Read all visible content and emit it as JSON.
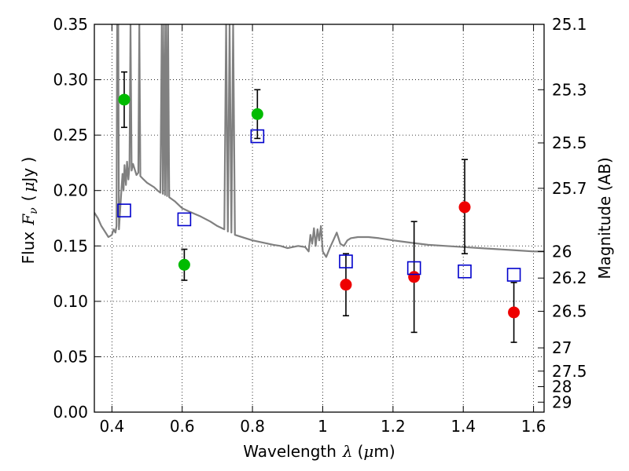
{
  "chart_data": {
    "type": "scatter",
    "xlabel": {
      "text": "Wavelength",
      "symbol": "λ",
      "unit_open": "(",
      "unit_mu": "μ",
      "unit_rest": "m)"
    },
    "ylabel": {
      "text": "Flux",
      "symbol_main": "F",
      "symbol_sub": "ν",
      "unit_open": "(",
      "unit_mu": "μ",
      "unit_rest": "Jy )"
    },
    "y2label": "Magnitude (AB)",
    "xlim": [
      0.35,
      1.63
    ],
    "ylim": [
      0.0,
      0.35
    ],
    "grid": true,
    "x_ticks": [
      {
        "value": 0.4,
        "label": "0.4"
      },
      {
        "value": 0.6,
        "label": "0.6"
      },
      {
        "value": 0.8,
        "label": "0.8"
      },
      {
        "value": 1.0,
        "label": "1"
      },
      {
        "value": 1.2,
        "label": "1.2"
      },
      {
        "value": 1.4,
        "label": "1.4"
      },
      {
        "value": 1.6,
        "label": "1.6"
      }
    ],
    "y_ticks": [
      {
        "value": 0.0,
        "label": "0.00"
      },
      {
        "value": 0.05,
        "label": "0.05"
      },
      {
        "value": 0.1,
        "label": "0.10"
      },
      {
        "value": 0.15,
        "label": "0.15"
      },
      {
        "value": 0.2,
        "label": "0.20"
      },
      {
        "value": 0.25,
        "label": "0.25"
      },
      {
        "value": 0.3,
        "label": "0.30"
      },
      {
        "value": 0.35,
        "label": "0.35"
      }
    ],
    "y2_ticks": [
      {
        "flux": 0.35,
        "label": "25.1"
      },
      {
        "flux": 0.291,
        "label": "25.3"
      },
      {
        "flux": 0.243,
        "label": "25.5"
      },
      {
        "flux": 0.202,
        "label": "25.7"
      },
      {
        "flux": 0.145,
        "label": "26"
      },
      {
        "flux": 0.121,
        "label": "26.2"
      },
      {
        "flux": 0.091,
        "label": "26.5"
      },
      {
        "flux": 0.058,
        "label": "27"
      },
      {
        "flux": 0.037,
        "label": "27.5"
      },
      {
        "flux": 0.023,
        "label": "28"
      },
      {
        "flux": 0.009,
        "label": "29"
      }
    ],
    "series": [
      {
        "marker": "circle",
        "color": "#00bb00",
        "points": [
          {
            "x": 0.435,
            "y": 0.282,
            "yerr_low": 0.257,
            "yerr_high": 0.307
          },
          {
            "x": 0.606,
            "y": 0.133,
            "yerr_low": 0.119,
            "yerr_high": 0.147
          },
          {
            "x": 0.814,
            "y": 0.269,
            "yerr_low": 0.247,
            "yerr_high": 0.291
          }
        ]
      },
      {
        "marker": "circle",
        "color": "#ee0000",
        "points": [
          {
            "x": 1.066,
            "y": 0.115,
            "yerr_low": 0.087,
            "yerr_high": 0.143
          },
          {
            "x": 1.26,
            "y": 0.122,
            "yerr_low": 0.072,
            "yerr_high": 0.172
          },
          {
            "x": 1.404,
            "y": 0.185,
            "yerr_low": 0.143,
            "yerr_high": 0.228
          },
          {
            "x": 1.544,
            "y": 0.09,
            "yerr_low": 0.063,
            "yerr_high": 0.117
          }
        ]
      },
      {
        "marker": "square-open",
        "color": "#0000cc",
        "points": [
          {
            "x": 0.435,
            "y": 0.182
          },
          {
            "x": 0.606,
            "y": 0.174
          },
          {
            "x": 0.814,
            "y": 0.249
          },
          {
            "x": 1.066,
            "y": 0.136
          },
          {
            "x": 1.26,
            "y": 0.13
          },
          {
            "x": 1.404,
            "y": 0.127
          },
          {
            "x": 1.544,
            "y": 0.124
          }
        ]
      },
      {
        "marker": "line",
        "color": "#808080",
        "points": [
          [
            0.35,
            0.18
          ],
          [
            0.36,
            0.175
          ],
          [
            0.37,
            0.168
          ],
          [
            0.38,
            0.163
          ],
          [
            0.39,
            0.158
          ],
          [
            0.4,
            0.16
          ],
          [
            0.405,
            0.165
          ],
          [
            0.41,
            0.162
          ],
          [
            0.413,
            0.168
          ],
          [
            0.415,
            0.35
          ],
          [
            0.418,
            0.35
          ],
          [
            0.42,
            0.165
          ],
          [
            0.425,
            0.19
          ],
          [
            0.43,
            0.215
          ],
          [
            0.433,
            0.2
          ],
          [
            0.436,
            0.223
          ],
          [
            0.44,
            0.205
          ],
          [
            0.443,
            0.226
          ],
          [
            0.447,
            0.21
          ],
          [
            0.45,
            0.222
          ],
          [
            0.453,
            0.35
          ],
          [
            0.456,
            0.218
          ],
          [
            0.46,
            0.224
          ],
          [
            0.465,
            0.219
          ],
          [
            0.47,
            0.214
          ],
          [
            0.475,
            0.216
          ],
          [
            0.478,
            0.35
          ],
          [
            0.481,
            0.213
          ],
          [
            0.49,
            0.21
          ],
          [
            0.5,
            0.207
          ],
          [
            0.52,
            0.203
          ],
          [
            0.53,
            0.2
          ],
          [
            0.538,
            0.198
          ],
          [
            0.542,
            0.35
          ],
          [
            0.545,
            0.197
          ],
          [
            0.548,
            0.35
          ],
          [
            0.551,
            0.196
          ],
          [
            0.554,
            0.35
          ],
          [
            0.557,
            0.195
          ],
          [
            0.56,
            0.35
          ],
          [
            0.563,
            0.194
          ],
          [
            0.58,
            0.19
          ],
          [
            0.6,
            0.184
          ],
          [
            0.62,
            0.181
          ],
          [
            0.65,
            0.177
          ],
          [
            0.68,
            0.172
          ],
          [
            0.7,
            0.168
          ],
          [
            0.72,
            0.165
          ],
          [
            0.725,
            0.35
          ],
          [
            0.73,
            0.163
          ],
          [
            0.735,
            0.35
          ],
          [
            0.74,
            0.162
          ],
          [
            0.745,
            0.35
          ],
          [
            0.75,
            0.16
          ],
          [
            0.78,
            0.157
          ],
          [
            0.8,
            0.155
          ],
          [
            0.83,
            0.153
          ],
          [
            0.86,
            0.151
          ],
          [
            0.88,
            0.15
          ],
          [
            0.9,
            0.148
          ],
          [
            0.93,
            0.15
          ],
          [
            0.95,
            0.149
          ],
          [
            0.96,
            0.145
          ],
          [
            0.965,
            0.16
          ],
          [
            0.97,
            0.152
          ],
          [
            0.975,
            0.166
          ],
          [
            0.98,
            0.15
          ],
          [
            0.985,
            0.165
          ],
          [
            0.99,
            0.155
          ],
          [
            0.995,
            0.168
          ],
          [
            1.0,
            0.145
          ],
          [
            1.01,
            0.14
          ],
          [
            1.02,
            0.148
          ],
          [
            1.03,
            0.155
          ],
          [
            1.04,
            0.162
          ],
          [
            1.05,
            0.152
          ],
          [
            1.06,
            0.15
          ],
          [
            1.07,
            0.155
          ],
          [
            1.08,
            0.157
          ],
          [
            1.1,
            0.158
          ],
          [
            1.13,
            0.158
          ],
          [
            1.16,
            0.157
          ],
          [
            1.2,
            0.155
          ],
          [
            1.25,
            0.153
          ],
          [
            1.3,
            0.151
          ],
          [
            1.35,
            0.15
          ],
          [
            1.4,
            0.149
          ],
          [
            1.45,
            0.148
          ],
          [
            1.5,
            0.147
          ],
          [
            1.55,
            0.146
          ],
          [
            1.6,
            0.145
          ],
          [
            1.63,
            0.145
          ]
        ]
      }
    ]
  }
}
